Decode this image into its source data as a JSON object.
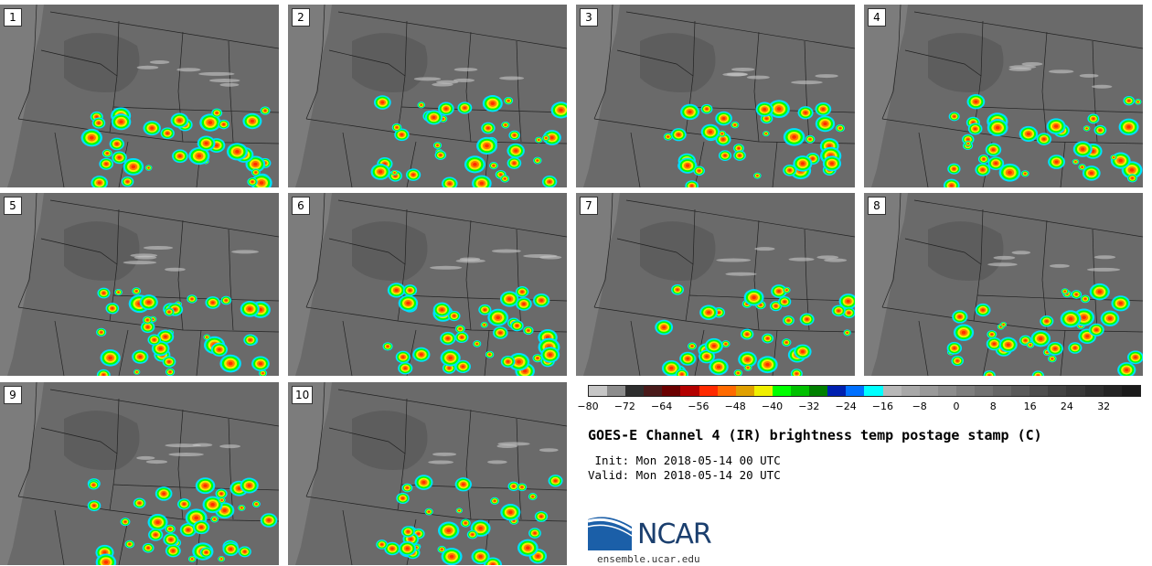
{
  "panels": [
    {
      "label": "1"
    },
    {
      "label": "2"
    },
    {
      "label": "3"
    },
    {
      "label": "4"
    },
    {
      "label": "5"
    },
    {
      "label": "6"
    },
    {
      "label": "7"
    },
    {
      "label": "8"
    },
    {
      "label": "9"
    },
    {
      "label": "10"
    }
  ],
  "colorbar": {
    "colors": [
      "#c6c6c6",
      "#8c8c8c",
      "#2e2e2e",
      "#4a1a1a",
      "#6b0000",
      "#b30000",
      "#ff2a00",
      "#ff6a00",
      "#e0a000",
      "#f0f000",
      "#00ff00",
      "#00c000",
      "#008000",
      "#0020b0",
      "#0070ff",
      "#00ffff",
      "#b8b8b8",
      "#a8a8a8",
      "#9a9a9a",
      "#8c8c8c",
      "#7e7e7e",
      "#727272",
      "#666666",
      "#5a5a5a",
      "#4e4e4e",
      "#424242",
      "#383838",
      "#2e2e2e",
      "#242424",
      "#1a1a1a"
    ],
    "ticks": [
      "−80",
      "−72",
      "−64",
      "−56",
      "−48",
      "−40",
      "−32",
      "−24",
      "−16",
      "−8",
      "0",
      "8",
      "16",
      "24",
      "32"
    ]
  },
  "title": "GOES-E Channel 4 (IR) brightness temp postage stamp (C)",
  "init": " Init: Mon 2018-05-14 00 UTC",
  "valid": "Valid: Mon 2018-05-14 20 UTC",
  "logo": {
    "text": "NCAR",
    "site": "ensemble.ucar.edu",
    "colors": {
      "blue": "#1b5fa8",
      "navy": "#1b3f6e"
    }
  },
  "storm_palette": [
    "#ff3000",
    "#ff7a00",
    "#ffd000",
    "#f0f000",
    "#00ff00",
    "#00b000",
    "#0030c0",
    "#00e0ff"
  ]
}
